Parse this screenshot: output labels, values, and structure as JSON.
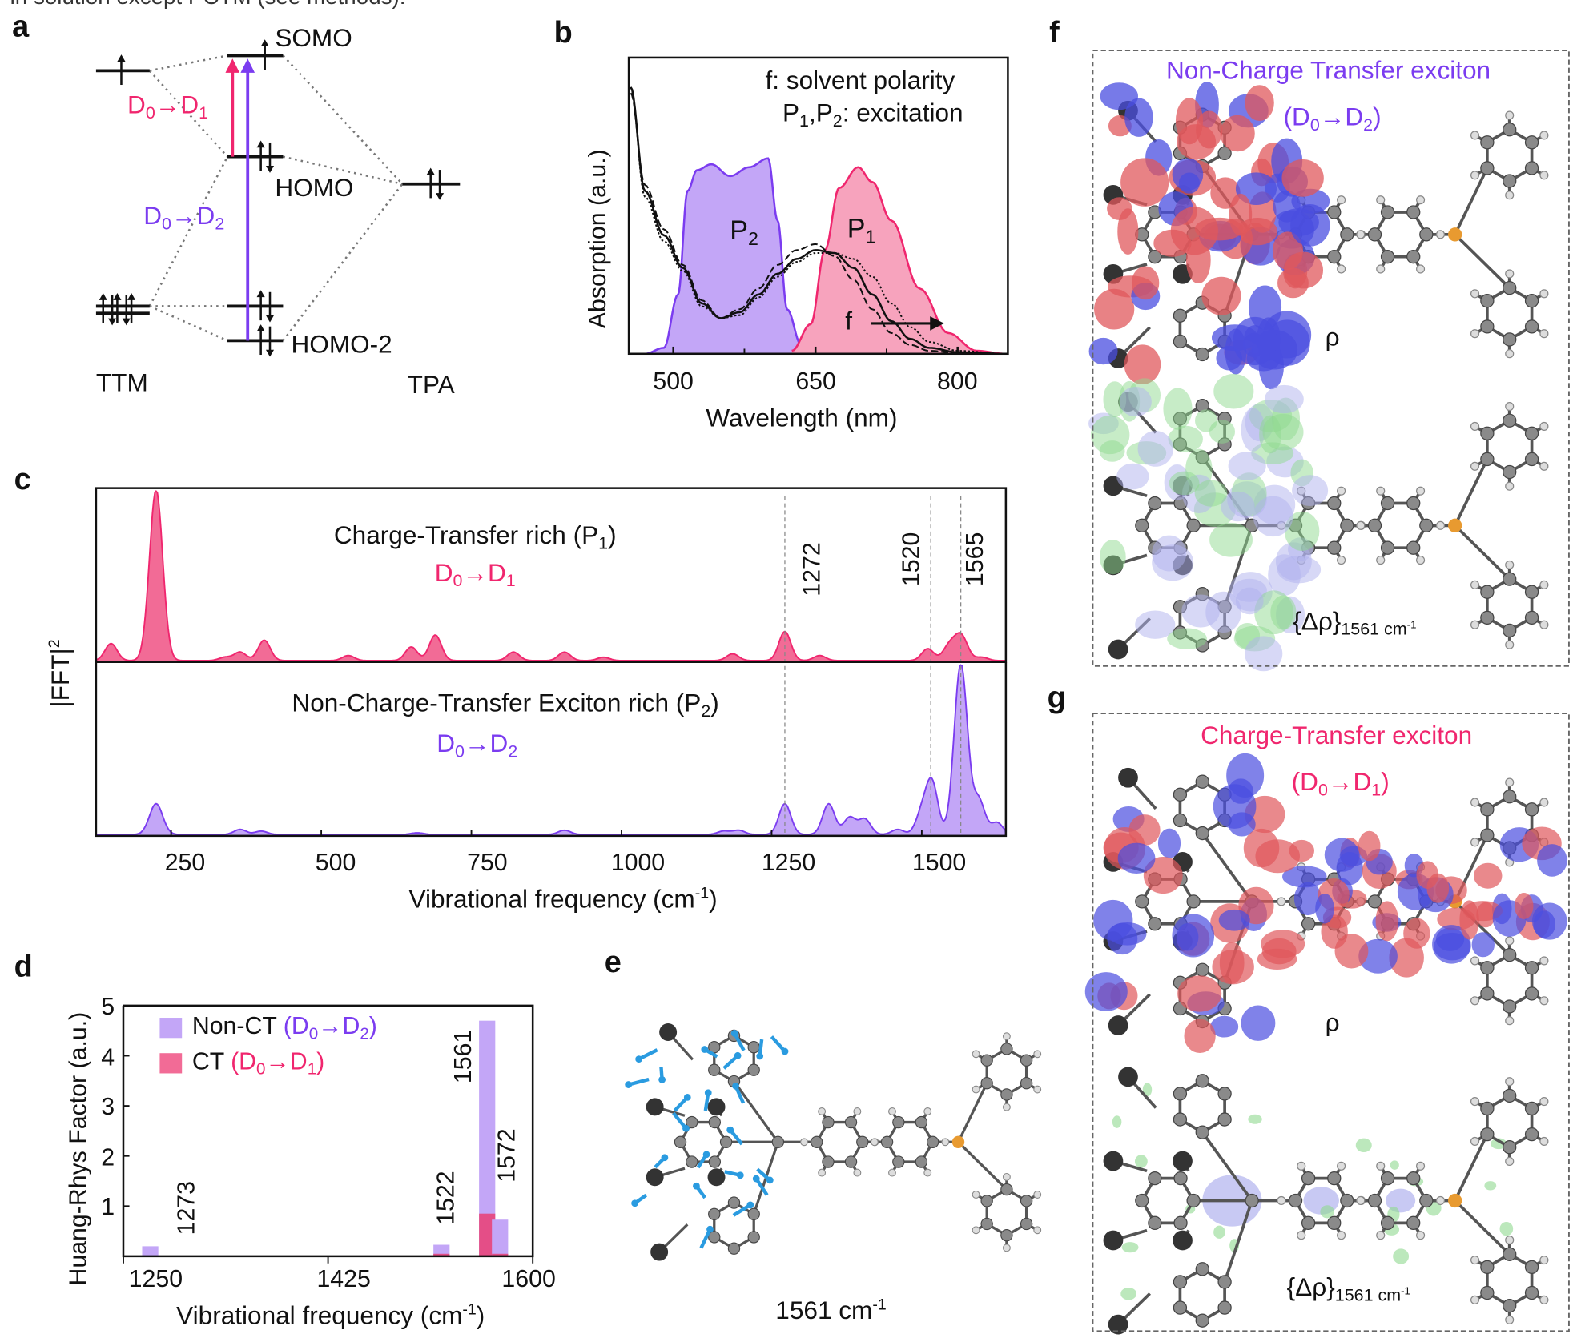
{
  "caption_fragment": "in solution except PCTM (see methods).",
  "panel_labels": {
    "a": "a",
    "b": "b",
    "c": "c",
    "d": "d",
    "e": "e",
    "f": "f",
    "g": "g"
  },
  "colors": {
    "ct_pink": "#f0266e",
    "nonct_purple": "#7b3cf0",
    "ct_fill": "#f7a3bd",
    "nonct_fill": "#c3a6f7",
    "rho_blue": "#4a4ee0",
    "rho_red": "#e0585c",
    "drho_green": "#8fd98f",
    "drho_lavender": "#b0b2ee",
    "vector_blue": "#2a9be0"
  },
  "panel_a": {
    "somo": "SOMO",
    "homo": "HOMO",
    "homo2": "HOMO-2",
    "ttm": "TTM",
    "tpa": "TPA",
    "transition_ct": "D0→D1",
    "transition_nonct": "D0→D2"
  },
  "panel_f": {
    "title": "Non-Charge  Transfer exciton",
    "transition": "(D0→D2)",
    "rho": "ρ",
    "drho": "{Δρ}1561 cm-1"
  },
  "panel_g": {
    "title": "Charge-Transfer exciton",
    "transition": "(D0→D1)",
    "rho": "ρ",
    "drho": "{Δρ}1561 cm-1"
  },
  "panel_e": {
    "mode_label": "1561 cm-1"
  },
  "chart_data": [
    {
      "panel": "b",
      "type": "area",
      "xlabel": "Wavelength (nm)",
      "ylabel": "Absorption (a.u.)",
      "xlim": [
        453,
        853
      ],
      "ylim": [
        0,
        1
      ],
      "xticks": [
        500,
        650,
        800
      ],
      "annotations": [
        "f: solvent polarity",
        "P1,P2: excitation",
        "f"
      ],
      "absorption_series": [
        {
          "style": "solid",
          "x": [
            455,
            470,
            490,
            510,
            530,
            550,
            570,
            590,
            610,
            630,
            650,
            670,
            690,
            710,
            730,
            750,
            770,
            800,
            850
          ],
          "y": [
            0.9,
            0.55,
            0.4,
            0.29,
            0.17,
            0.12,
            0.14,
            0.2,
            0.27,
            0.32,
            0.35,
            0.34,
            0.29,
            0.2,
            0.11,
            0.05,
            0.02,
            0.005,
            0
          ]
        },
        {
          "style": "dashed",
          "x": [
            455,
            470,
            490,
            510,
            530,
            550,
            570,
            590,
            610,
            630,
            650,
            670,
            690,
            710,
            730,
            750,
            770,
            800,
            850
          ],
          "y": [
            0.88,
            0.57,
            0.42,
            0.3,
            0.18,
            0.12,
            0.15,
            0.22,
            0.3,
            0.35,
            0.37,
            0.33,
            0.25,
            0.15,
            0.07,
            0.03,
            0.01,
            0.003,
            0
          ]
        },
        {
          "style": "dotted",
          "x": [
            455,
            470,
            490,
            510,
            530,
            550,
            570,
            590,
            610,
            630,
            650,
            670,
            690,
            710,
            730,
            750,
            770,
            800,
            850
          ],
          "y": [
            0.9,
            0.53,
            0.38,
            0.28,
            0.16,
            0.12,
            0.13,
            0.19,
            0.26,
            0.31,
            0.34,
            0.34,
            0.32,
            0.26,
            0.17,
            0.09,
            0.04,
            0.01,
            0
          ]
        }
      ],
      "excitation_series": [
        {
          "name": "P2",
          "x": [
            470,
            490,
            505,
            515,
            525,
            540,
            560,
            580,
            600,
            610,
            620,
            635,
            660,
            700
          ],
          "y": [
            0,
            0.02,
            0.2,
            0.55,
            0.62,
            0.64,
            0.6,
            0.63,
            0.66,
            0.45,
            0.15,
            0.03,
            0.01,
            0
          ]
        },
        {
          "name": "P1",
          "x": [
            625,
            645,
            660,
            675,
            695,
            710,
            730,
            760,
            790,
            820,
            850
          ],
          "y": [
            0.01,
            0.1,
            0.35,
            0.56,
            0.63,
            0.58,
            0.45,
            0.22,
            0.07,
            0.01,
            0
          ]
        }
      ]
    },
    {
      "panel": "c",
      "type": "area",
      "xlabel": "Vibrational frequency (cm-1)",
      "ylabel": "|FFT|2",
      "xlim": [
        125,
        1640
      ],
      "xticks": [
        250,
        500,
        750,
        1000,
        1250,
        1500
      ],
      "marked_frequencies": [
        1272,
        1520,
        1565
      ],
      "series": [
        {
          "name": "Charge-Transfer rich (P1)",
          "transition": "D0→D1",
          "peaks_x": [
            150,
            225,
            340,
            365,
            405,
            545,
            650,
            690,
            820,
            905,
            970,
            1185,
            1272,
            1330,
            1510,
            1545,
            1565,
            1600
          ],
          "peaks_y": [
            0.1,
            1.0,
            0.02,
            0.05,
            0.12,
            0.03,
            0.08,
            0.15,
            0.05,
            0.05,
            0.02,
            0.04,
            0.17,
            0.03,
            0.07,
            0.08,
            0.15,
            0.02
          ]
        },
        {
          "name": "Non-Charge-Transfer Exciton rich (P2)",
          "transition": "D0→D2",
          "peaks_x": [
            225,
            365,
            400,
            660,
            905,
            1170,
            1195,
            1272,
            1345,
            1380,
            1405,
            1460,
            1500,
            1517,
            1565,
            1595,
            1625
          ],
          "peaks_y": [
            0.18,
            0.03,
            0.02,
            0.01,
            0.025,
            0.02,
            0.025,
            0.18,
            0.18,
            0.1,
            0.09,
            0.03,
            0.12,
            0.3,
            1.0,
            0.2,
            0.07
          ]
        }
      ]
    },
    {
      "panel": "d",
      "type": "bar",
      "xlabel": "Vibrational frequency (cm-1)",
      "ylabel": "Huang-Rhys Factor (a.u.)",
      "xlim": [
        1250,
        1600
      ],
      "ylim": [
        0,
        5
      ],
      "xticks": [
        1250,
        1425,
        1600
      ],
      "yticks": [
        1,
        2,
        3,
        4,
        5
      ],
      "categories": [
        1273,
        1522,
        1561,
        1572
      ],
      "series": [
        {
          "name": "Non-CT (D0→D2)",
          "values": [
            0.2,
            0.23,
            4.7,
            0.73
          ]
        },
        {
          "name": "CT (D0→D1)",
          "values": [
            0,
            0.05,
            0.85,
            0.05
          ]
        }
      ],
      "legend": "top-left"
    }
  ]
}
